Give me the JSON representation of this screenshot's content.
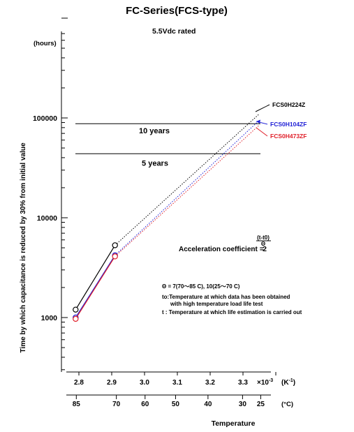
{
  "chart_data": {
    "type": "line",
    "title": "FC-Series(FCS-type)",
    "subtitle": "5.5Vdc rated",
    "ylabel": "Time by which capacitance is reduced by 30% from initial value",
    "y_unit": "(hours)",
    "yscale": "log",
    "ylim": [
      300,
      1000000
    ],
    "y_ticks": [
      "1000",
      "10000",
      "100000"
    ],
    "x_ticks_inverse_temp": [
      "2.8",
      "2.9",
      "3.0",
      "3.1",
      "3.2",
      "3.3"
    ],
    "x_multiplier": "×10",
    "x_multiplier_exp": "-3",
    "x_unit_inverse": "(K",
    "x_unit_inverse_exp": "-1",
    "x_unit_inverse_close": ")",
    "x_ticks_celsius": [
      "85",
      "70",
      "60",
      "50",
      "40",
      "30",
      "25"
    ],
    "x_unit_celsius": "(°C)",
    "xlabel": "Temperature",
    "xlim": [
      2.76,
      3.42
    ],
    "reference_lines": [
      {
        "label": "10 years",
        "value": 87600
      },
      {
        "label": "5 years",
        "value": 43800
      }
    ],
    "series": [
      {
        "name": "FCS0H224Z",
        "color": "#000000",
        "measured": [
          {
            "x": 2.79,
            "y": 1200
          },
          {
            "x": 2.91,
            "y": 5300
          }
        ],
        "estimated": [
          {
            "x": 2.91,
            "y": 5300
          },
          {
            "x": 3.35,
            "y": 110000
          }
        ]
      },
      {
        "name": "FCS0H104ZF",
        "color": "#1f1fd6",
        "measured": [
          {
            "x": 2.79,
            "y": 1000
          },
          {
            "x": 2.91,
            "y": 4200
          }
        ],
        "estimated": [
          {
            "x": 2.91,
            "y": 4200
          },
          {
            "x": 3.35,
            "y": 95000
          }
        ]
      },
      {
        "name": "FCS0H473ZF",
        "color": "#e0202a",
        "measured": [
          {
            "x": 2.79,
            "y": 970
          },
          {
            "x": 2.91,
            "y": 4100
          }
        ],
        "estimated": [
          {
            "x": 2.91,
            "y": 4100
          },
          {
            "x": 3.35,
            "y": 85000
          }
        ]
      }
    ],
    "formula": {
      "label": "Acceleration coefficient",
      "equals": "=",
      "base": "2",
      "numerator": "(t-t0)",
      "denominator": "Θ"
    },
    "notes": [
      "Θ = 7(70～85 C), 10(25～70 C)",
      "to:Temperature at which data has been obtained",
      "with high temperature load life test",
      "t : Temperature at which life estimation is carried out"
    ]
  }
}
